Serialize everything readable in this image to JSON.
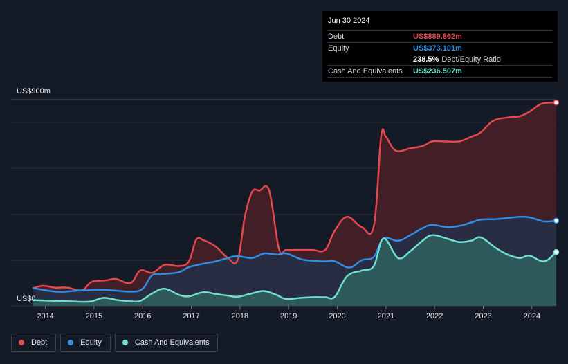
{
  "tooltip": {
    "date": "Jun 30 2024",
    "debt_label": "Debt",
    "debt_value": "US$889.862m",
    "equity_label": "Equity",
    "equity_value": "US$373.101m",
    "ratio_value": "238.5%",
    "ratio_label": "Debt/Equity Ratio",
    "cash_label": "Cash And Equivalents",
    "cash_value": "US$236.507m"
  },
  "legend": {
    "debt": "Debt",
    "equity": "Equity",
    "cash": "Cash And Equivalents"
  },
  "colors": {
    "debt": "#e5484d",
    "equity": "#2f8fe6",
    "cash": "#6fe0cd",
    "background": "#151b26",
    "grid": "#2a303a"
  },
  "chart_data": {
    "type": "area",
    "title": "",
    "xlabel": "",
    "ylabel": "",
    "ylim": [
      0,
      900
    ],
    "y_top_label": "US$900m",
    "y_bottom_label": "US$0",
    "x_ticks": [
      "2014",
      "2015",
      "2016",
      "2017",
      "2018",
      "2019",
      "2020",
      "2021",
      "2022",
      "2023",
      "2024"
    ],
    "x_range": [
      2013.75,
      2024.5
    ],
    "series": [
      {
        "name": "Debt",
        "x": [
          2013.75,
          2013.95,
          2014.2,
          2014.45,
          2014.75,
          2014.95,
          2015.25,
          2015.45,
          2015.75,
          2015.95,
          2016.2,
          2016.45,
          2016.75,
          2016.95,
          2017.1,
          2017.25,
          2017.5,
          2017.75,
          2017.95,
          2018.1,
          2018.25,
          2018.4,
          2018.6,
          2018.8,
          2018.95,
          2019.25,
          2019.5,
          2019.75,
          2019.95,
          2020.2,
          2020.5,
          2020.75,
          2020.9,
          2021.0,
          2021.2,
          2021.5,
          2021.75,
          2021.95,
          2022.2,
          2022.5,
          2022.75,
          2022.95,
          2023.2,
          2023.5,
          2023.75,
          2023.95,
          2024.2,
          2024.5
        ],
        "values": [
          78,
          88,
          80,
          80,
          68,
          105,
          112,
          118,
          100,
          155,
          145,
          180,
          175,
          195,
          290,
          288,
          260,
          210,
          200,
          390,
          500,
          505,
          505,
          250,
          245,
          245,
          245,
          245,
          330,
          390,
          345,
          350,
          740,
          740,
          680,
          690,
          700,
          720,
          720,
          720,
          740,
          760,
          810,
          825,
          830,
          850,
          885,
          890
        ]
      },
      {
        "name": "Equity",
        "x": [
          2013.75,
          2014.25,
          2014.75,
          2015.25,
          2015.75,
          2016.0,
          2016.2,
          2016.45,
          2016.75,
          2016.95,
          2017.25,
          2017.5,
          2017.75,
          2017.95,
          2018.25,
          2018.5,
          2018.75,
          2018.95,
          2019.25,
          2019.5,
          2019.75,
          2019.95,
          2020.25,
          2020.5,
          2020.75,
          2020.95,
          2021.25,
          2021.5,
          2021.75,
          2021.95,
          2022.25,
          2022.5,
          2022.75,
          2022.95,
          2023.25,
          2023.5,
          2023.75,
          2023.95,
          2024.25,
          2024.5
        ],
        "values": [
          78,
          62,
          68,
          70,
          62,
          75,
          135,
          140,
          148,
          170,
          185,
          195,
          210,
          218,
          210,
          230,
          225,
          230,
          205,
          198,
          195,
          195,
          168,
          200,
          215,
          295,
          285,
          310,
          340,
          355,
          345,
          350,
          365,
          378,
          380,
          385,
          390,
          388,
          370,
          373
        ]
      },
      {
        "name": "Cash And Equivalents",
        "x": [
          2013.75,
          2014.2,
          2014.5,
          2014.75,
          2014.95,
          2015.2,
          2015.5,
          2015.75,
          2015.95,
          2016.2,
          2016.45,
          2016.75,
          2016.95,
          2017.25,
          2017.5,
          2017.75,
          2017.95,
          2018.25,
          2018.5,
          2018.75,
          2018.95,
          2019.25,
          2019.5,
          2019.75,
          2019.95,
          2020.2,
          2020.5,
          2020.75,
          2020.95,
          2021.25,
          2021.5,
          2021.75,
          2021.95,
          2022.25,
          2022.5,
          2022.75,
          2022.95,
          2023.25,
          2023.5,
          2023.75,
          2023.95,
          2024.25,
          2024.5
        ],
        "values": [
          25,
          22,
          20,
          18,
          20,
          35,
          25,
          20,
          22,
          55,
          75,
          48,
          42,
          60,
          52,
          45,
          40,
          55,
          65,
          48,
          30,
          35,
          38,
          38,
          40,
          130,
          155,
          175,
          295,
          210,
          240,
          285,
          310,
          295,
          280,
          285,
          300,
          255,
          225,
          210,
          220,
          195,
          236
        ]
      }
    ]
  }
}
